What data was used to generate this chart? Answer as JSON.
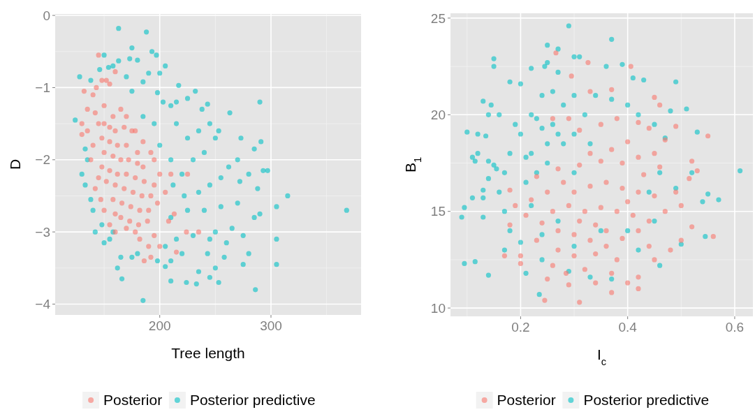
{
  "chart_data": [
    {
      "type": "scatter",
      "xlabel": "Tree length",
      "ylabel": "D",
      "xlim": [
        106,
        381
      ],
      "ylim": [
        -4.15,
        0.02
      ],
      "xticks": [
        200,
        300
      ],
      "yticks": [
        0,
        -1,
        -2,
        -3,
        -4
      ],
      "grid": true,
      "legend": "bottom",
      "marker": "circle",
      "series": [
        {
          "name": "Posterior",
          "color": "#f8766d",
          "x": [
            145,
            152,
            148,
            155,
            132,
            135,
            130,
            140,
            143,
            160,
            165,
            170,
            178,
            185,
            192,
            195,
            200,
            210,
            225,
            205,
            213,
            208,
            235,
            224,
            215,
            192,
            186,
            155,
            160,
            130,
            142,
            147,
            150,
            190,
            195,
            200,
            182,
            178,
            170,
            145,
            150,
            155,
            160,
            148,
            155,
            162,
            170,
            150,
            158,
            165,
            172,
            180,
            148,
            155,
            162,
            170,
            178,
            186,
            152,
            160,
            168,
            176,
            184,
            192,
            158,
            166,
            174,
            182,
            190,
            198,
            165,
            173,
            181,
            189,
            160,
            140,
            138,
            145,
            175,
            180,
            185,
            195,
            135,
            142,
            150,
            158,
            168
          ],
          "values": [
            -0.55,
            -0.9,
            -0.9,
            -0.95,
            -1.05,
            -1.3,
            -1.5,
            -1.1,
            -1.0,
            -0.78,
            -1.3,
            -1.4,
            -1.6,
            -1.75,
            -1.9,
            -2.0,
            -2.2,
            -2.2,
            -2.2,
            -2.45,
            -2.75,
            -2.85,
            -3.0,
            -3.0,
            -3.28,
            -3.35,
            -3.4,
            -2.9,
            -3.0,
            -1.65,
            -2.4,
            -2.55,
            -2.7,
            -3.2,
            -3.05,
            -3.2,
            -3.1,
            -3.0,
            -2.95,
            -1.5,
            -1.5,
            -1.55,
            -1.6,
            -1.7,
            -1.75,
            -1.8,
            -1.8,
            -1.9,
            -1.95,
            -2.0,
            -2.0,
            -2.05,
            -2.1,
            -2.15,
            -2.2,
            -2.2,
            -2.25,
            -2.3,
            -2.3,
            -2.35,
            -2.4,
            -2.45,
            -2.5,
            -2.5,
            -2.55,
            -2.6,
            -2.65,
            -2.7,
            -2.7,
            -2.6,
            -2.8,
            -2.85,
            -2.9,
            -2.85,
            -2.75,
            -1.8,
            -2.0,
            -2.25,
            -1.6,
            -1.9,
            -2.1,
            -2.35,
            -1.6,
            -1.35,
            -1.25,
            -1.4,
            -1.55
          ]
        },
        {
          "name": "Posterior predictive",
          "color": "#00bfc4",
          "x": [
            163,
            188,
            175,
            193,
            197,
            173,
            180,
            163,
            150,
            146,
            128,
            138,
            154,
            158,
            205,
            200,
            190,
            170,
            185,
            217,
            232,
            198,
            175,
            203,
            210,
            215,
            225,
            243,
            290,
            238,
            263,
            124,
            245,
            253,
            273,
            285,
            291,
            250,
            235,
            240,
            270,
            262,
            293,
            297,
            280,
            230,
            220,
            210,
            200,
            195,
            185,
            215,
            225,
            212,
            222,
            235,
            245,
            255,
            272,
            288,
            315,
            305,
            368,
            270,
            255,
            240,
            225,
            210,
            285,
            290,
            265,
            250,
            230,
            215,
            205,
            245,
            260,
            275,
            280,
            305,
            305,
            275,
            258,
            243,
            250,
            235,
            220,
            210,
            205,
            198,
            180,
            175,
            165,
            162,
            166,
            185,
            210,
            224,
            233,
            245,
            253,
            286,
            150,
            142,
            138,
            133,
            130,
            135,
            133,
            140,
            148,
            155,
            158
          ],
          "values": [
            -0.18,
            -0.23,
            -0.45,
            -0.5,
            -0.55,
            -0.6,
            -0.62,
            -0.63,
            -0.55,
            -0.75,
            -0.85,
            -0.9,
            -0.72,
            -0.7,
            -0.7,
            -0.8,
            -0.8,
            -0.85,
            -0.92,
            -0.97,
            -1.05,
            -1.07,
            -1.05,
            -1.2,
            -1.25,
            -1.2,
            -1.15,
            -1.23,
            -1.2,
            -1.3,
            -1.35,
            -1.45,
            -1.5,
            -1.6,
            -1.7,
            -1.85,
            -1.75,
            -1.7,
            -1.6,
            -1.9,
            -2.0,
            -2.1,
            -2.15,
            -2.15,
            -2.2,
            -2.0,
            -2.2,
            -2.0,
            -1.8,
            -1.5,
            -1.4,
            -1.5,
            -1.7,
            -2.35,
            -2.5,
            -2.45,
            -2.35,
            -2.25,
            -2.3,
            -2.4,
            -2.5,
            -2.65,
            -2.7,
            -2.6,
            -2.65,
            -2.7,
            -2.7,
            -2.8,
            -2.8,
            -2.75,
            -2.95,
            -3.0,
            -3.05,
            -3.1,
            -3.2,
            -3.1,
            -3.15,
            -3.05,
            -3.3,
            -3.1,
            -3.45,
            -3.45,
            -3.35,
            -3.3,
            -3.5,
            -3.55,
            -3.3,
            -3.4,
            -3.48,
            -3.4,
            -3.3,
            -3.35,
            -3.35,
            -3.5,
            -3.65,
            -3.95,
            -3.68,
            -3.7,
            -3.72,
            -3.63,
            -3.7,
            -3.8,
            -3.15,
            -3.0,
            -2.55,
            -2.35,
            -2.2,
            -2.0,
            -1.85,
            -2.7,
            -2.9,
            -3.1,
            -3.0
          ]
        }
      ]
    },
    {
      "type": "scatter",
      "xlabel": "I$_{c}$",
      "ylabel": "B$_{1}$",
      "xlim": [
        0.069,
        0.634
      ],
      "ylim": [
        9.57,
        25.25
      ],
      "xticks": [
        {
          "value": 0.2,
          "label": "0.2"
        },
        {
          "value": 0.4,
          "label": "0.4"
        },
        {
          "value": 0.6,
          "label": "0.6"
        }
      ],
      "yticks": [
        10,
        15,
        20,
        25
      ],
      "grid": true,
      "legend": "bottom",
      "marker": "circle",
      "series": [
        {
          "name": "Posterior",
          "color": "#f8766d",
          "x": [
            0.266,
            0.326,
            0.406,
            0.295,
            0.33,
            0.37,
            0.45,
            0.46,
            0.49,
            0.55,
            0.52,
            0.53,
            0.515,
            0.49,
            0.5,
            0.52,
            0.56,
            0.5,
            0.48,
            0.44,
            0.45,
            0.42,
            0.42,
            0.4,
            0.37,
            0.37,
            0.34,
            0.32,
            0.31,
            0.29,
            0.285,
            0.25,
            0.245,
            0.26,
            0.23,
            0.2,
            0.2,
            0.17,
            0.18,
            0.21,
            0.19,
            0.18,
            0.23,
            0.27,
            0.26,
            0.29,
            0.31,
            0.35,
            0.38,
            0.42,
            0.44,
            0.47,
            0.45,
            0.42,
            0.39,
            0.35,
            0.31,
            0.28,
            0.3,
            0.33,
            0.36,
            0.39,
            0.42,
            0.45,
            0.47,
            0.44,
            0.41,
            0.38,
            0.35,
            0.32,
            0.29,
            0.26,
            0.24,
            0.27,
            0.3,
            0.33,
            0.36,
            0.39,
            0.42,
            0.34,
            0.38,
            0.3,
            0.27,
            0.4,
            0.37,
            0.33,
            0.34,
            0.36,
            0.31,
            0.4,
            0.43,
            0.46,
            0.25,
            0.22
          ],
          "values": [
            23.2,
            22.7,
            22.5,
            22.0,
            21.2,
            21.3,
            20.9,
            20.5,
            19.4,
            18.9,
            17.6,
            17.1,
            16.7,
            16.0,
            15.3,
            14.2,
            13.7,
            13.5,
            13.0,
            13.2,
            12.5,
            11.6,
            11.0,
            11.3,
            11.8,
            10.8,
            11.3,
            12.0,
            10.3,
            11.2,
            11.8,
            11.5,
            10.4,
            12.2,
            13.5,
            12.3,
            12.7,
            12.7,
            14.3,
            14.8,
            15.3,
            16.1,
            16.8,
            17.2,
            19.8,
            19.8,
            19.2,
            19.5,
            19.8,
            19.6,
            19.3,
            18.7,
            18.0,
            17.8,
            17.5,
            17.6,
            17.4,
            16.5,
            16.0,
            16.3,
            16.5,
            16.2,
            16.0,
            15.8,
            15.0,
            14.5,
            14.8,
            15.0,
            15.2,
            15.0,
            15.3,
            15.0,
            14.4,
            14.0,
            13.8,
            13.5,
            13.2,
            13.6,
            14.0,
            12.8,
            12.5,
            12.7,
            13.0,
            18.6,
            18.2,
            18.0,
            14.3,
            14.0,
            14.5,
            15.5,
            16.9,
            17.3,
            16.0,
            15.6
          ]
        },
        {
          "name": "Posterior predictive",
          "color": "#00bfc4",
          "x": [
            0.29,
            0.37,
            0.25,
            0.27,
            0.15,
            0.15,
            0.25,
            0.3,
            0.31,
            0.39,
            0.36,
            0.22,
            0.245,
            0.27,
            0.18,
            0.2,
            0.41,
            0.43,
            0.49,
            0.1,
            0.13,
            0.145,
            0.14,
            0.16,
            0.12,
            0.135,
            0.11,
            0.115,
            0.12,
            0.14,
            0.15,
            0.155,
            0.14,
            0.13,
            0.13,
            0.11,
            0.095,
            0.09,
            0.13,
            0.095,
            0.115,
            0.14,
            0.235,
            0.2,
            0.17,
            0.18,
            0.17,
            0.16,
            0.17,
            0.18,
            0.2,
            0.22,
            0.24,
            0.26,
            0.28,
            0.3,
            0.34,
            0.37,
            0.4,
            0.42,
            0.45,
            0.48,
            0.51,
            0.53,
            0.47,
            0.52,
            0.55,
            0.54,
            0.57,
            0.61,
            0.545,
            0.5,
            0.46,
            0.45,
            0.42,
            0.37,
            0.33,
            0.29,
            0.24,
            0.21,
            0.22,
            0.24,
            0.25,
            0.26,
            0.23,
            0.21,
            0.22,
            0.25,
            0.28,
            0.3,
            0.32,
            0.33,
            0.27,
            0.23,
            0.19,
            0.21,
            0.3,
            0.46,
            0.44,
            0.49,
            0.4,
            0.35,
            0.3,
            0.27,
            0.24
          ],
          "values": [
            24.6,
            23.9,
            23.6,
            23.4,
            22.9,
            22.5,
            22.7,
            23.0,
            23.0,
            22.6,
            22.5,
            22.4,
            22.5,
            22.2,
            21.7,
            21.6,
            21.9,
            21.8,
            21.7,
            19.1,
            20.7,
            20.5,
            20.0,
            20.0,
            19.0,
            18.9,
            17.8,
            17.6,
            18.0,
            17.6,
            17.4,
            17.2,
            16.7,
            16.1,
            15.7,
            15.7,
            15.2,
            14.7,
            14.7,
            12.3,
            12.4,
            11.7,
            10.7,
            13.4,
            13.0,
            14.0,
            15.0,
            16.0,
            17.0,
            18.0,
            19.0,
            20.0,
            21.0,
            21.2,
            20.5,
            21.0,
            21.0,
            20.8,
            20.5,
            20.0,
            19.5,
            20.2,
            20.3,
            19.1,
            18.8,
            17.0,
            15.9,
            15.5,
            15.6,
            17.1,
            13.7,
            13.3,
            12.2,
            14.5,
            13.0,
            11.5,
            11.6,
            11.9,
            12.5,
            11.8,
            18.0,
            19.3,
            18.5,
            19.5,
            17.0,
            16.5,
            15.3,
            17.5,
            18.5,
            19.0,
            20.0,
            18.5,
            19.0,
            19.8,
            19.5,
            17.8,
            17.0,
            17.0,
            16.0,
            16.2,
            14.0,
            14.0,
            13.2,
            14.5,
            13.8
          ]
        }
      ]
    }
  ]
}
